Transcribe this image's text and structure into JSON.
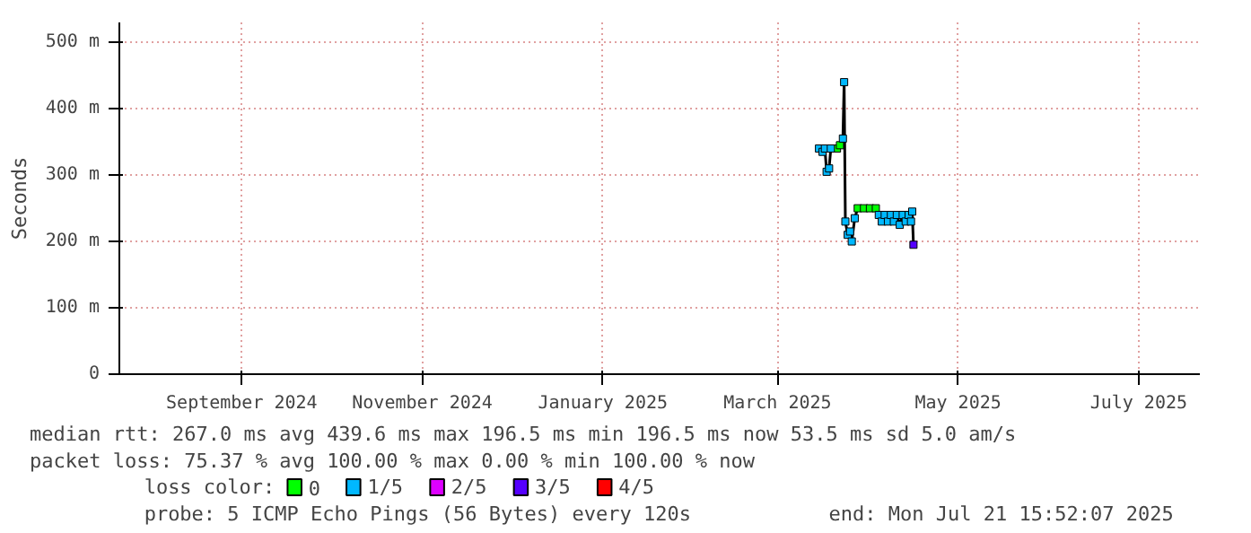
{
  "chart_data": {
    "type": "line",
    "ylabel": "Seconds",
    "x": [
      "2025-03-15T00:00",
      "2025-03-16T05:00",
      "2025-03-17T00:00",
      "2025-03-17T14:00",
      "2025-03-18T10:00",
      "2025-03-19T00:00",
      "2025-03-20T02:00",
      "2025-03-21T02:00",
      "2025-03-22T02:00",
      "2025-03-23T02:00",
      "2025-03-23T12:00",
      "2025-03-23T22:00",
      "2025-03-24T17:00",
      "2025-03-25T12:00",
      "2025-03-26T02:00",
      "2025-03-27T02:00",
      "2025-03-28T02:00",
      "2025-03-30T05:00",
      "2025-04-01T05:00",
      "2025-04-03T05:00",
      "2025-04-04T05:00",
      "2025-04-05T05:00",
      "2025-04-06T05:00",
      "2025-04-07T07:00",
      "2025-04-08T07:00",
      "2025-04-09T07:00",
      "2025-04-10T07:00",
      "2025-04-11T07:00",
      "2025-04-12T07:00",
      "2025-04-13T07:00",
      "2025-04-14T07:00",
      "2025-04-15T02:00",
      "2025-04-15T12:00",
      "2025-04-15T22:00"
    ],
    "series": [
      {
        "color": "#000000",
        "marker": "none",
        "values": [
          340,
          335,
          340,
          305,
          310,
          340,
          340,
          340,
          345,
          355,
          440,
          230,
          210,
          215,
          200,
          235,
          250,
          250,
          250,
          250,
          240,
          230,
          240,
          230,
          240,
          230,
          240,
          225,
          240,
          230,
          240,
          230,
          245,
          195
        ]
      },
      {
        "name": "0",
        "type": "scatter",
        "color": "#00ff00",
        "values": [
          null,
          null,
          null,
          null,
          null,
          null,
          null,
          340,
          345,
          null,
          null,
          null,
          null,
          null,
          null,
          null,
          250,
          250,
          250,
          250,
          null,
          null,
          null,
          null,
          null,
          null,
          null,
          null,
          null,
          null,
          null,
          null,
          null,
          null
        ]
      },
      {
        "name": "1/5",
        "type": "scatter",
        "color": "#00b8ff",
        "values": [
          340,
          335,
          340,
          305,
          310,
          340,
          null,
          null,
          null,
          355,
          440,
          230,
          210,
          215,
          200,
          235,
          null,
          null,
          null,
          null,
          240,
          230,
          240,
          230,
          240,
          230,
          240,
          225,
          240,
          230,
          240,
          230,
          245,
          null
        ]
      },
      {
        "name": "2/5",
        "type": "scatter",
        "color": "#dd00ff",
        "values": [
          null,
          null,
          null,
          null,
          null,
          null,
          null,
          null,
          null,
          null,
          null,
          null,
          null,
          null,
          null,
          null,
          null,
          null,
          null,
          null,
          null,
          null,
          null,
          null,
          null,
          null,
          null,
          null,
          null,
          null,
          null,
          null,
          null,
          null
        ]
      },
      {
        "name": "3/5",
        "type": "scatter",
        "color": "#5500ff",
        "values": [
          null,
          null,
          null,
          null,
          null,
          null,
          null,
          null,
          null,
          null,
          null,
          null,
          null,
          null,
          null,
          null,
          null,
          null,
          null,
          null,
          null,
          null,
          null,
          null,
          null,
          null,
          null,
          null,
          null,
          null,
          null,
          null,
          null,
          195
        ]
      },
      {
        "name": "4/5",
        "type": "scatter",
        "color": "#ff0000",
        "values": [
          null,
          null,
          null,
          null,
          null,
          null,
          null,
          null,
          null,
          null,
          null,
          null,
          null,
          null,
          null,
          null,
          null,
          null,
          null,
          null,
          null,
          null,
          null,
          null,
          null,
          null,
          null,
          null,
          null,
          null,
          null,
          null,
          null,
          null
        ]
      }
    ],
    "xlim": [
      "2024-07-21T15:52",
      "2025-07-21T15:52"
    ],
    "xticks": [
      {
        "value": "2024-09-01",
        "label": "September 2024"
      },
      {
        "value": "2024-11-01",
        "label": "November 2024"
      },
      {
        "value": "2025-01-01",
        "label": "January 2025"
      },
      {
        "value": "2025-03-01",
        "label": "March 2025"
      },
      {
        "value": "2025-05-01",
        "label": "May 2025"
      },
      {
        "value": "2025-07-01",
        "label": "July 2025"
      }
    ],
    "ylim": [
      0,
      530
    ],
    "yticks": [
      0,
      {
        "value": 100,
        "label": "100 m"
      },
      {
        "value": 200,
        "label": "200 m"
      },
      {
        "value": 300,
        "label": "300 m"
      },
      {
        "value": 400,
        "label": "400 m"
      },
      {
        "value": 500,
        "label": "500 m"
      }
    ],
    "grid": true,
    "legend": "bottom",
    "legend_title": "loss color:",
    "marker": "square",
    "annotations": [
      "median rtt:  267.0 ms avg  439.6 ms max  196.5 ms min  196.5 ms now  53.5 ms sd  5.0  am/s",
      "packet loss: 75.37 % avg  100.00 % max  0.00 % min  100.00 % now",
      "probe:  5 ICMP Echo Pings (56 Bytes) every 120s",
      "end: Mon Jul 21 15:52:07 2025"
    ]
  }
}
